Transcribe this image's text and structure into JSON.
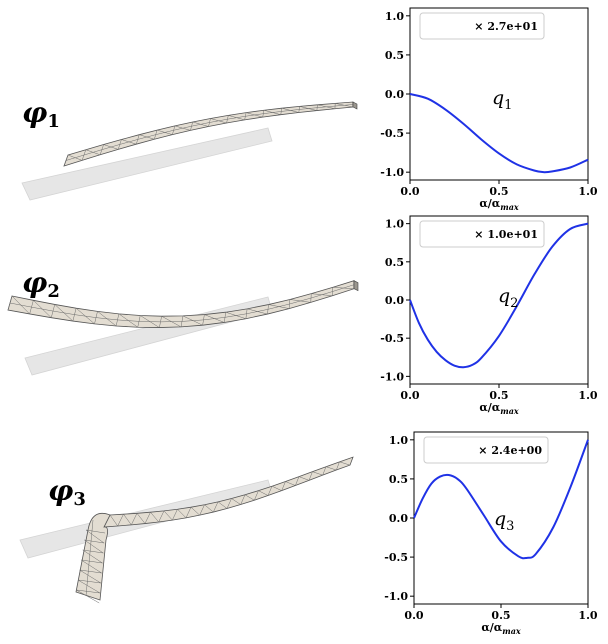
{
  "modes": [
    {
      "label": "φ",
      "sub": "1"
    },
    {
      "label": "φ",
      "sub": "2"
    },
    {
      "label": "φ",
      "sub": "3"
    }
  ],
  "colors": {
    "curve": "#1f32e6",
    "beam_fill": "#e3ddd2",
    "beam_mesh": "#6b6b6b",
    "ghost": "#e6e6e6"
  },
  "chart_data": [
    {
      "type": "line",
      "xlabel": "α/α_max",
      "ylabel": "",
      "xlim": [
        0,
        1
      ],
      "ylim": [
        -1.1,
        1.1
      ],
      "xticks": [
        "0.0",
        "0.5",
        "1.0"
      ],
      "yticks": [
        "-1.0",
        "-0.5",
        "0.0",
        "0.5",
        "1.0"
      ],
      "scale_label": "× 2.7e+01",
      "series": [
        {
          "name": "q",
          "sub": "1",
          "x": [
            0.0,
            0.1,
            0.2,
            0.3,
            0.4,
            0.5,
            0.6,
            0.7,
            0.75,
            0.8,
            0.9,
            1.0
          ],
          "y": [
            0.0,
            -0.06,
            -0.2,
            -0.38,
            -0.58,
            -0.76,
            -0.9,
            -0.98,
            -1.0,
            -0.99,
            -0.94,
            -0.84
          ]
        }
      ]
    },
    {
      "type": "line",
      "xlabel": "α/α_max",
      "ylabel": "",
      "xlim": [
        0,
        1
      ],
      "ylim": [
        -1.1,
        1.1
      ],
      "xticks": [
        "0.0",
        "0.5",
        "1.0"
      ],
      "yticks": [
        "-1.0",
        "-0.5",
        "0.0",
        "0.5",
        "1.0"
      ],
      "scale_label": "× 1.0e+01",
      "series": [
        {
          "name": "q",
          "sub": "2",
          "x": [
            0.0,
            0.05,
            0.1,
            0.15,
            0.2,
            0.25,
            0.3,
            0.35,
            0.4,
            0.5,
            0.6,
            0.7,
            0.8,
            0.9,
            1.0
          ],
          "y": [
            0.0,
            -0.3,
            -0.52,
            -0.68,
            -0.79,
            -0.86,
            -0.88,
            -0.85,
            -0.76,
            -0.47,
            -0.08,
            0.34,
            0.7,
            0.93,
            1.0
          ]
        }
      ]
    },
    {
      "type": "line",
      "xlabel": "α/α_max",
      "ylabel": "",
      "xlim": [
        0,
        1
      ],
      "ylim": [
        -1.1,
        1.1
      ],
      "xticks": [
        "0.0",
        "0.5",
        "1.0"
      ],
      "yticks": [
        "-1.0",
        "-0.5",
        "0.0",
        "0.5",
        "1.0"
      ],
      "scale_label": "× 2.4e+00",
      "series": [
        {
          "name": "q",
          "sub": "3",
          "x": [
            0.0,
            0.05,
            0.1,
            0.15,
            0.2,
            0.25,
            0.3,
            0.4,
            0.5,
            0.6,
            0.65,
            0.7,
            0.8,
            0.9,
            1.0
          ],
          "y": [
            0.0,
            0.25,
            0.44,
            0.53,
            0.55,
            0.5,
            0.38,
            0.04,
            -0.3,
            -0.49,
            -0.51,
            -0.46,
            -0.12,
            0.4,
            1.0
          ]
        }
      ]
    }
  ]
}
